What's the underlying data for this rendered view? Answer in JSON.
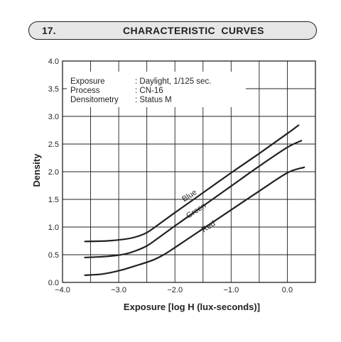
{
  "section": {
    "number": "17.",
    "title": "CHARACTERISTIC CURVES"
  },
  "notes": [
    {
      "key": "Exposure",
      "value": ": Daylight, 1/125 sec."
    },
    {
      "key": "Process",
      "value": ": CN-16"
    },
    {
      "key": "Densitometry",
      "value": ": Status M"
    }
  ],
  "chart_data": {
    "type": "line",
    "xlabel": "Exposure [log H (lux-seconds)]",
    "ylabel": "Density",
    "xlim": [
      -4.0,
      0.5
    ],
    "ylim": [
      0.0,
      4.0
    ],
    "x_ticks": [
      -4.0,
      -3.0,
      -2.0,
      -1.0,
      0.0
    ],
    "x_tick_labels": [
      "−4.0",
      "−3.0",
      "−2.0",
      "−1.0",
      "0.0"
    ],
    "y_ticks": [
      0.0,
      0.5,
      1.0,
      1.5,
      2.0,
      2.5,
      3.0,
      3.5,
      4.0
    ],
    "y_tick_labels": [
      "0.0",
      "0.5",
      "1.0",
      "1.5",
      "2.0",
      "2.5",
      "3.0",
      "3.5",
      "4.0"
    ],
    "grid": true,
    "curve_color": "#231f20",
    "series": [
      {
        "name": "Blue",
        "x": [
          -3.6,
          -3.2,
          -2.9,
          -2.7,
          -2.5,
          -2.3,
          -2.0,
          -1.5,
          -1.0,
          -0.5,
          0.0,
          0.2
        ],
        "y": [
          0.74,
          0.75,
          0.78,
          0.82,
          0.9,
          1.04,
          1.26,
          1.62,
          1.98,
          2.33,
          2.69,
          2.84
        ]
      },
      {
        "name": "Green",
        "x": [
          -3.6,
          -3.2,
          -2.9,
          -2.7,
          -2.5,
          -2.3,
          -2.0,
          -1.5,
          -1.0,
          -0.5,
          0.0,
          0.25
        ],
        "y": [
          0.45,
          0.47,
          0.51,
          0.57,
          0.66,
          0.8,
          1.02,
          1.38,
          1.74,
          2.1,
          2.44,
          2.56
        ]
      },
      {
        "name": "Red",
        "x": [
          -3.6,
          -3.3,
          -3.0,
          -2.7,
          -2.4,
          -2.2,
          -2.0,
          -1.5,
          -1.0,
          -0.5,
          0.0,
          0.3
        ],
        "y": [
          0.13,
          0.15,
          0.21,
          0.3,
          0.4,
          0.5,
          0.63,
          0.97,
          1.31,
          1.65,
          1.98,
          2.08
        ]
      }
    ],
    "curve_labels": [
      {
        "series": "Blue",
        "text": "Blue",
        "x": -1.72,
        "y": 1.53,
        "angle": -33
      },
      {
        "series": "Green",
        "text": "Green",
        "x": -1.6,
        "y": 1.26,
        "angle": -33
      },
      {
        "series": "Red",
        "text": "Red",
        "x": -1.38,
        "y": 0.97,
        "angle": -33
      }
    ]
  }
}
